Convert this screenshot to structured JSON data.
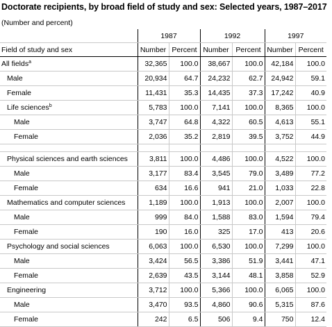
{
  "title": "Doctorate recipients, by broad field of study and sex: Selected years, 1987–2017",
  "subtitle": "(Number and percent)",
  "header": {
    "field_label": "Field of study and sex",
    "years": [
      "1987",
      "1992",
      "1997"
    ],
    "number_label": "Number",
    "percent_label": "Percent"
  },
  "rows": [
    {
      "label": "All fields",
      "sup": "a",
      "indent": 0,
      "v": [
        "32,365",
        "100.0",
        "38,667",
        "100.0",
        "42,184",
        "100.0"
      ]
    },
    {
      "label": "Male",
      "sup": "",
      "indent": 1,
      "v": [
        "20,934",
        "64.7",
        "24,232",
        "62.7",
        "24,942",
        "59.1"
      ]
    },
    {
      "label": "Female",
      "sup": "",
      "indent": 1,
      "v": [
        "11,431",
        "35.3",
        "14,435",
        "37.3",
        "17,242",
        "40.9"
      ]
    },
    {
      "label": "Life sciences",
      "sup": "b",
      "indent": 1,
      "v": [
        "5,783",
        "100.0",
        "7,141",
        "100.0",
        "8,365",
        "100.0"
      ]
    },
    {
      "label": "Male",
      "sup": "",
      "indent": 2,
      "v": [
        "3,747",
        "64.8",
        "4,322",
        "60.5",
        "4,613",
        "55.1"
      ]
    },
    {
      "label": "Female",
      "sup": "",
      "indent": 2,
      "v": [
        "2,036",
        "35.2",
        "2,819",
        "39.5",
        "3,752",
        "44.9"
      ]
    },
    {
      "spacer": true
    },
    {
      "label": "Physical sciences and earth sciences",
      "sup": "",
      "indent": 1,
      "v": [
        "3,811",
        "100.0",
        "4,486",
        "100.0",
        "4,522",
        "100.0"
      ]
    },
    {
      "label": "Male",
      "sup": "",
      "indent": 2,
      "v": [
        "3,177",
        "83.4",
        "3,545",
        "79.0",
        "3,489",
        "77.2"
      ]
    },
    {
      "label": "Female",
      "sup": "",
      "indent": 2,
      "v": [
        "634",
        "16.6",
        "941",
        "21.0",
        "1,033",
        "22.8"
      ]
    },
    {
      "label": "Mathematics and computer sciences",
      "sup": "",
      "indent": 1,
      "v": [
        "1,189",
        "100.0",
        "1,913",
        "100.0",
        "2,007",
        "100.0"
      ]
    },
    {
      "label": "Male",
      "sup": "",
      "indent": 2,
      "v": [
        "999",
        "84.0",
        "1,588",
        "83.0",
        "1,594",
        "79.4"
      ]
    },
    {
      "label": "Female",
      "sup": "",
      "indent": 2,
      "v": [
        "190",
        "16.0",
        "325",
        "17.0",
        "413",
        "20.6"
      ]
    },
    {
      "label": "Psychology and social sciences",
      "sup": "",
      "indent": 1,
      "v": [
        "6,063",
        "100.0",
        "6,530",
        "100.0",
        "7,299",
        "100.0"
      ]
    },
    {
      "label": "Male",
      "sup": "",
      "indent": 2,
      "v": [
        "3,424",
        "56.5",
        "3,386",
        "51.9",
        "3,441",
        "47.1"
      ]
    },
    {
      "label": "Female",
      "sup": "",
      "indent": 2,
      "v": [
        "2,639",
        "43.5",
        "3,144",
        "48.1",
        "3,858",
        "52.9"
      ]
    },
    {
      "label": "Engineering",
      "sup": "",
      "indent": 1,
      "v": [
        "3,712",
        "100.0",
        "5,366",
        "100.0",
        "6,065",
        "100.0"
      ]
    },
    {
      "label": "Male",
      "sup": "",
      "indent": 2,
      "v": [
        "3,470",
        "93.5",
        "4,860",
        "90.6",
        "5,315",
        "87.6"
      ]
    },
    {
      "label": "Female",
      "sup": "",
      "indent": 2,
      "v": [
        "242",
        "6.5",
        "506",
        "9.4",
        "750",
        "12.4"
      ]
    }
  ]
}
